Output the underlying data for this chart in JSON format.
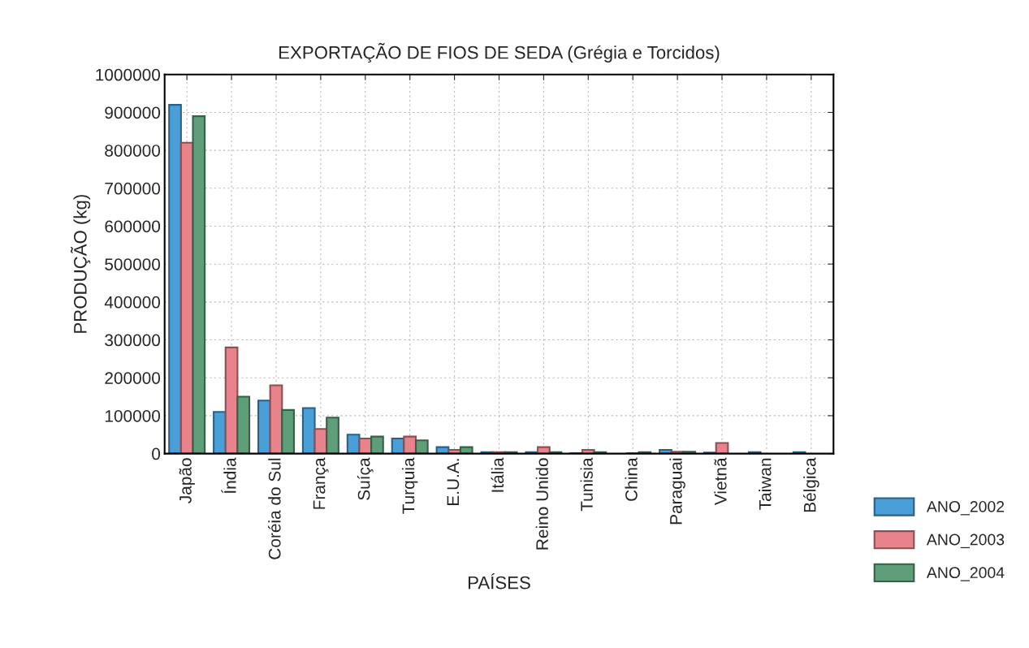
{
  "chart_data": {
    "type": "bar",
    "title": "EXPORTAÇÃO DE FIOS DE SEDA (Grégia e Torcidos)",
    "xlabel": "PAÍSES",
    "ylabel": "PRODUÇÃO (kg)",
    "categories": [
      "Japão",
      "Índia",
      "Coréia do Sul",
      "França",
      "Suíça",
      "Turquia",
      "E.U.A.",
      "Itália",
      "Reino Unido",
      "Tunisia",
      "China",
      "Paraguai",
      "Vietnã",
      "Taiwan",
      "Bélgica"
    ],
    "series": [
      {
        "name": "ANO_2002",
        "color": "#4a9fd8",
        "values": [
          920000,
          110000,
          140000,
          120000,
          50000,
          40000,
          17000,
          4000,
          4000,
          1000,
          null,
          10000,
          3000,
          4000,
          4000
        ]
      },
      {
        "name": "ANO_2003",
        "color": "#e8838c",
        "values": [
          820000,
          280000,
          180000,
          65000,
          40000,
          45000,
          10000,
          4000,
          17000,
          10000,
          1000,
          5000,
          28000,
          null,
          null
        ]
      },
      {
        "name": "ANO_2004",
        "color": "#5e9e78",
        "values": [
          890000,
          150000,
          115000,
          95000,
          45000,
          35000,
          17000,
          4000,
          4000,
          4000,
          4000,
          5000,
          null,
          null,
          null
        ]
      }
    ],
    "ylim": [
      0,
      1000000
    ],
    "yticks": [
      0,
      100000,
      200000,
      300000,
      400000,
      500000,
      600000,
      700000,
      800000,
      900000,
      1000000
    ],
    "grid": true,
    "legend": "right"
  }
}
